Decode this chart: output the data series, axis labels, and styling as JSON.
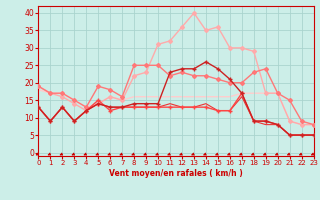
{
  "bg_color": "#cceee8",
  "grid_color": "#aad4ce",
  "x_ticks": [
    0,
    1,
    2,
    3,
    4,
    5,
    6,
    7,
    8,
    9,
    10,
    11,
    12,
    13,
    14,
    15,
    16,
    17,
    18,
    19,
    20,
    21,
    22,
    23
  ],
  "y_ticks": [
    0,
    5,
    10,
    15,
    20,
    25,
    30,
    35,
    40
  ],
  "ylim": [
    -1,
    42
  ],
  "xlim": [
    0,
    23
  ],
  "lines": [
    {
      "x": [
        0,
        1,
        2,
        3,
        4,
        5,
        6,
        7,
        8,
        9,
        10,
        11,
        12,
        13,
        14,
        15,
        16,
        17,
        18,
        19,
        20,
        21,
        22,
        23
      ],
      "y": [
        19,
        17,
        16,
        14,
        12,
        14,
        16,
        15,
        22,
        23,
        31,
        32,
        36,
        40,
        35,
        36,
        30,
        30,
        29,
        17,
        17,
        9,
        8,
        8
      ],
      "color": "#ffaaaa",
      "lw": 1.0,
      "marker": "D",
      "ms": 2.0,
      "zorder": 2
    },
    {
      "x": [
        0,
        1,
        2,
        3,
        4,
        5,
        6,
        7,
        8,
        9,
        10,
        11,
        12,
        13,
        14,
        15,
        16,
        17,
        18,
        19,
        20,
        21,
        22,
        23
      ],
      "y": [
        19,
        17,
        17,
        15,
        13,
        19,
        18,
        16,
        25,
        25,
        25,
        22,
        23,
        22,
        22,
        21,
        20,
        20,
        23,
        24,
        17,
        15,
        9,
        8
      ],
      "color": "#ff7777",
      "lw": 1.0,
      "marker": "D",
      "ms": 2.0,
      "zorder": 3
    },
    {
      "x": [
        0,
        1,
        2,
        3,
        4,
        5,
        6,
        7,
        8,
        9,
        10,
        11,
        12,
        13,
        14,
        15,
        16,
        17,
        18,
        19,
        20,
        21,
        22,
        23
      ],
      "y": [
        18,
        17,
        17,
        15,
        13,
        14,
        16,
        15,
        16,
        16,
        16,
        16,
        16,
        16,
        16,
        16,
        16,
        17,
        17,
        17,
        17,
        9,
        8,
        8
      ],
      "color": "#ffcccc",
      "lw": 1.0,
      "marker": null,
      "ms": 0,
      "zorder": 1
    },
    {
      "x": [
        0,
        1,
        2,
        3,
        4,
        5,
        6,
        7,
        8,
        9,
        10,
        11,
        12,
        13,
        14,
        15,
        16,
        17,
        18,
        19,
        20,
        21,
        22,
        23
      ],
      "y": [
        13,
        9,
        13,
        9,
        12,
        15,
        12,
        13,
        13,
        13,
        13,
        13,
        13,
        13,
        13,
        12,
        12,
        17,
        9,
        9,
        8,
        5,
        5,
        5
      ],
      "color": "#ff4444",
      "lw": 1.0,
      "marker": "+",
      "ms": 3.5,
      "zorder": 4
    },
    {
      "x": [
        0,
        1,
        2,
        3,
        4,
        5,
        6,
        7,
        8,
        9,
        10,
        11,
        12,
        13,
        14,
        15,
        16,
        17,
        18,
        19,
        20,
        21,
        22,
        23
      ],
      "y": [
        13,
        9,
        13,
        9,
        12,
        14,
        13,
        13,
        14,
        14,
        14,
        23,
        24,
        24,
        26,
        24,
        21,
        17,
        9,
        9,
        8,
        5,
        5,
        5
      ],
      "color": "#cc2222",
      "lw": 1.0,
      "marker": "+",
      "ms": 3.5,
      "zorder": 5
    },
    {
      "x": [
        0,
        1,
        2,
        3,
        4,
        5,
        6,
        7,
        8,
        9,
        10,
        11,
        12,
        13,
        14,
        15,
        16,
        17,
        18,
        19,
        20,
        21,
        22,
        23
      ],
      "y": [
        13,
        9,
        13,
        9,
        12,
        14,
        13,
        13,
        13,
        13,
        13,
        14,
        13,
        13,
        14,
        12,
        12,
        16,
        9,
        8,
        8,
        5,
        5,
        5
      ],
      "color": "#ee3333",
      "lw": 0.8,
      "marker": null,
      "ms": 0,
      "zorder": 3
    }
  ],
  "xlabel": "Vent moyen/en rafales ( km/h )",
  "xlabel_color": "#cc0000",
  "tick_color": "#cc0000",
  "axis_color": "#cc0000",
  "figsize": [
    3.2,
    2.0
  ],
  "dpi": 100
}
